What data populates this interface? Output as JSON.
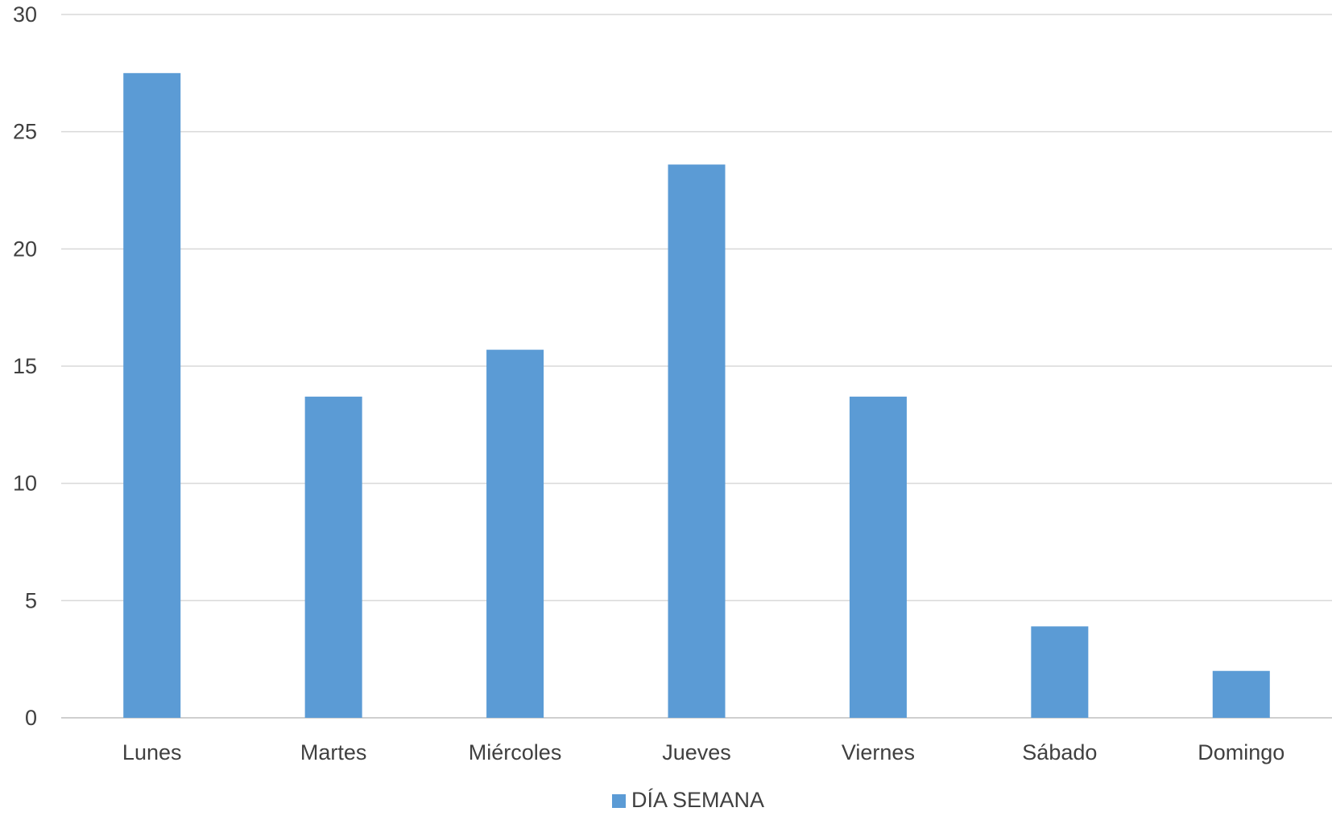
{
  "chart_data": {
    "type": "bar",
    "title": "",
    "xlabel": "",
    "ylabel": "",
    "categories": [
      "Lunes",
      "Martes",
      "Miércoles",
      "Jueves",
      "Viernes",
      "Sábado",
      "Domingo"
    ],
    "series": [
      {
        "name": "DÍA SEMANA",
        "color": "#5B9BD5",
        "values": [
          27.5,
          13.7,
          15.7,
          23.6,
          13.7,
          3.9,
          2.0
        ]
      }
    ],
    "ylim": [
      0,
      30
    ],
    "yticks": [
      0,
      5,
      10,
      15,
      20,
      25,
      30
    ],
    "grid": true,
    "legend_position": "bottom"
  },
  "legend": {
    "label": "DÍA SEMANA"
  }
}
